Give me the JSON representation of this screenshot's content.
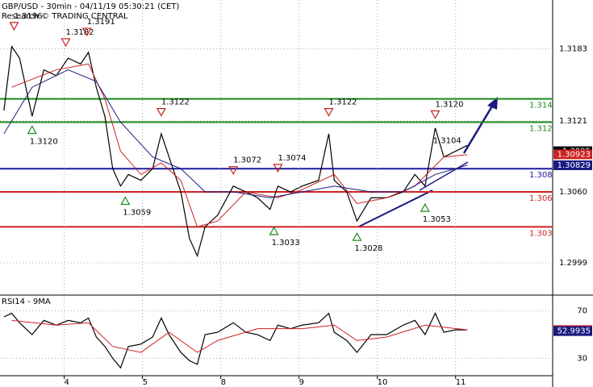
{
  "chart_data": [
    {
      "type": "line",
      "title": "GBP/USD - 30min - 04/11/19 05:30:21 (CET)",
      "subtitle": "Research © TRADING CENTRAL",
      "xlim": [
        0.18,
        7.24
      ],
      "ylim": [
        1.2972,
        1.3225
      ],
      "yticks": [
        {
          "value": 1.3183,
          "label": "1.3183"
        },
        {
          "value": 1.3121,
          "label": "1.3121"
        },
        {
          "value": 1.306,
          "label": "1.3060"
        },
        {
          "value": 1.2999,
          "label": "1.2999"
        }
      ],
      "grid": true,
      "series": [
        {
          "color": "#000000",
          "x": [
            0.23,
            0.33,
            0.43,
            0.59,
            0.74,
            0.9,
            1.05,
            1.21,
            1.31,
            1.41,
            1.52,
            1.62,
            1.72,
            1.82,
            1.98,
            2.13,
            2.24,
            2.34,
            2.49,
            2.6,
            2.7,
            2.8,
            2.96,
            3.16,
            3.32,
            3.47,
            3.63,
            3.73,
            3.89,
            4.04,
            4.25,
            4.38,
            4.45,
            4.61,
            4.74,
            4.92,
            5.12,
            5.33,
            5.48,
            5.61,
            5.74,
            5.85,
            6.0,
            6.15
          ],
          "values": [
            1.313,
            1.3185,
            1.3175,
            1.3125,
            1.3165,
            1.316,
            1.3175,
            1.317,
            1.318,
            1.315,
            1.3125,
            1.308,
            1.3065,
            1.3075,
            1.307,
            1.308,
            1.311,
            1.309,
            1.306,
            1.302,
            1.3005,
            1.303,
            1.304,
            1.3065,
            1.306,
            1.3055,
            1.3045,
            1.3065,
            1.306,
            1.3065,
            1.307,
            1.311,
            1.307,
            1.306,
            1.3035,
            1.3055,
            1.3055,
            1.306,
            1.3075,
            1.3065,
            1.3115,
            1.309,
            1.3095,
            1.31
          ]
        },
        {
          "color": "#cc2222",
          "x": [
            0.33,
            0.9,
            1.31,
            1.52,
            1.72,
            1.98,
            2.24,
            2.49,
            2.7,
            2.96,
            3.32,
            3.73,
            4.04,
            4.45,
            4.74,
            5.12,
            5.48,
            5.85,
            6.15
          ],
          "values": [
            1.315,
            1.3165,
            1.317,
            1.314,
            1.3095,
            1.3075,
            1.3085,
            1.307,
            1.303,
            1.3035,
            1.306,
            1.3055,
            1.3062,
            1.3075,
            1.305,
            1.3055,
            1.3065,
            1.309,
            1.3092
          ]
        },
        {
          "color": "#1a1a80",
          "x": [
            0.23,
            0.59,
            1.05,
            1.41,
            1.72,
            2.13,
            2.49,
            2.8,
            3.16,
            3.63,
            4.04,
            4.45,
            4.92,
            5.33,
            5.74,
            6.15
          ],
          "values": [
            1.311,
            1.315,
            1.3165,
            1.3155,
            1.312,
            1.309,
            1.308,
            1.306,
            1.306,
            1.3055,
            1.306,
            1.3065,
            1.306,
            1.306,
            1.3075,
            1.3083
          ]
        }
      ],
      "levels": [
        {
          "value": 1.314,
          "color": "#1a8a1a"
        },
        {
          "value": 1.312,
          "color": "#1a8a1a"
        },
        {
          "value": 1.308,
          "color": "#1a1aa0"
        },
        {
          "value": 1.306,
          "color": "#cc2222"
        },
        {
          "value": 1.303,
          "color": "#cc2222"
        }
      ],
      "last_values": [
        {
          "value": 1.3095,
          "color": "#000000"
        },
        {
          "value": 1.30923,
          "color": "#cc2222"
        },
        {
          "value": 1.30829,
          "color": "#1a1a80"
        }
      ],
      "annotations": [
        {
          "kind": "high",
          "x": 0.36,
          "value": 1.3196,
          "label": "1.3196"
        },
        {
          "kind": "high",
          "x": 1.02,
          "value": 1.3182,
          "label": "1.3182"
        },
        {
          "kind": "high",
          "x": 1.29,
          "value": 1.3191,
          "label": "1.3191"
        },
        {
          "kind": "low",
          "x": 0.59,
          "value": 1.312,
          "label": "1.3120"
        },
        {
          "kind": "high",
          "x": 2.24,
          "value": 1.3122,
          "label": "1.3122"
        },
        {
          "kind": "low",
          "x": 1.78,
          "value": 1.3059,
          "label": "1.3059"
        },
        {
          "kind": "high",
          "x": 3.16,
          "value": 1.3072,
          "label": "1.3072"
        },
        {
          "kind": "high",
          "x": 3.73,
          "value": 1.3074,
          "label": "1.3074"
        },
        {
          "kind": "low",
          "x": 3.68,
          "value": 1.3033,
          "label": "1.3033"
        },
        {
          "kind": "high",
          "x": 4.38,
          "value": 1.3122,
          "label": "1.3122"
        },
        {
          "kind": "low",
          "x": 4.74,
          "value": 1.3028,
          "label": "1.3028"
        },
        {
          "kind": "high",
          "x": 5.74,
          "value": 1.312,
          "label": "1.3120"
        },
        {
          "kind": "low",
          "x": 5.61,
          "value": 1.3053,
          "label": "1.3053"
        },
        {
          "kind": "plain",
          "x": 6.0,
          "value": 1.3104,
          "label": "1.3104"
        }
      ]
    },
    {
      "type": "line",
      "title": "RSI14 - 9MA",
      "xlim": [
        0.18,
        7.24
      ],
      "ylim": [
        16,
        82
      ],
      "yticks": [
        30,
        70
      ],
      "xticks": [
        {
          "value": 1,
          "label": "4"
        },
        {
          "value": 2,
          "label": "5"
        },
        {
          "value": 3,
          "label": "8"
        },
        {
          "value": 4,
          "label": "9"
        },
        {
          "value": 5,
          "label": "10"
        },
        {
          "value": 6,
          "label": "11"
        }
      ],
      "grid": true,
      "series": [
        {
          "color": "#000000",
          "x": [
            0.23,
            0.33,
            0.43,
            0.59,
            0.74,
            0.9,
            1.05,
            1.21,
            1.31,
            1.41,
            1.52,
            1.62,
            1.72,
            1.82,
            1.98,
            2.13,
            2.24,
            2.34,
            2.49,
            2.6,
            2.7,
            2.8,
            2.96,
            3.16,
            3.32,
            3.47,
            3.63,
            3.73,
            3.89,
            4.04,
            4.25,
            4.38,
            4.45,
            4.61,
            4.74,
            4.92,
            5.12,
            5.33,
            5.48,
            5.61,
            5.74,
            5.85,
            6.0,
            6.15
          ],
          "values": [
            65,
            68,
            60,
            50,
            62,
            58,
            62,
            60,
            64,
            48,
            40,
            30,
            22,
            40,
            42,
            48,
            64,
            50,
            35,
            28,
            25,
            50,
            52,
            60,
            52,
            50,
            45,
            58,
            55,
            58,
            60,
            68,
            52,
            45,
            35,
            50,
            50,
            58,
            62,
            50,
            68,
            52,
            54,
            54
          ]
        },
        {
          "color": "#cc2222",
          "x": [
            0.33,
            0.9,
            1.31,
            1.62,
            1.98,
            2.34,
            2.7,
            2.96,
            3.47,
            4.04,
            4.45,
            4.74,
            5.12,
            5.61,
            6.15
          ],
          "values": [
            62,
            58,
            60,
            40,
            35,
            52,
            35,
            45,
            55,
            55,
            58,
            45,
            48,
            58,
            54
          ]
        }
      ],
      "last_values": [
        {
          "value": 53.8219,
          "color": "#cc2222"
        },
        {
          "value": 52.9935,
          "color": "#1a1a80"
        }
      ]
    }
  ]
}
